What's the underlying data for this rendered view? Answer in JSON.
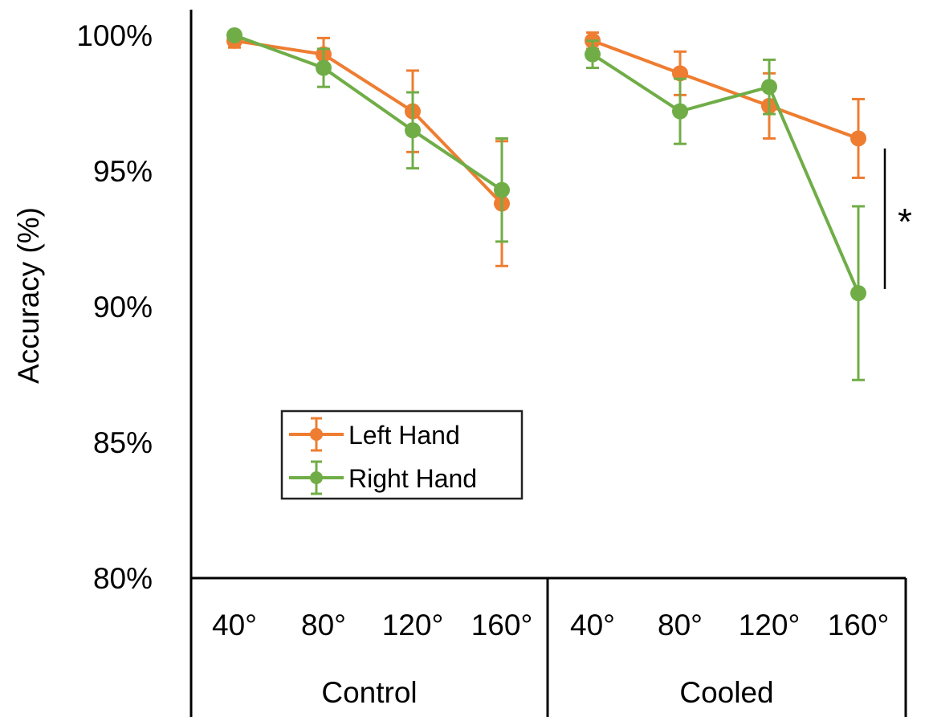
{
  "chart_data": {
    "type": "line",
    "ylabel": "Accuracy (%)",
    "ylim": [
      80,
      100
    ],
    "yticks": [
      100,
      95,
      90,
      85,
      80
    ],
    "ytick_labels": [
      "100%",
      "95%",
      "90%",
      "85%",
      "80%"
    ],
    "groups": [
      {
        "name": "Control",
        "categories": [
          "40°",
          "80°",
          "120°",
          "160°"
        ]
      },
      {
        "name": "Cooled",
        "categories": [
          "40°",
          "80°",
          "120°",
          "160°"
        ]
      }
    ],
    "series": [
      {
        "name": "Left Hand",
        "color": "#EE7D31",
        "values": [
          [
            99.8,
            99.3,
            97.2,
            93.8
          ],
          [
            99.8,
            98.6,
            97.4,
            96.2
          ]
        ],
        "errors": [
          [
            0.25,
            0.6,
            1.5,
            2.3
          ],
          [
            0.3,
            0.8,
            1.2,
            1.45
          ]
        ]
      },
      {
        "name": "Right Hand",
        "color": "#70AD47",
        "values": [
          [
            100.0,
            98.8,
            96.5,
            94.3
          ],
          [
            99.3,
            97.2,
            98.1,
            90.5
          ]
        ],
        "errors": [
          [
            0.0,
            0.7,
            1.4,
            1.9
          ],
          [
            0.5,
            1.2,
            1.0,
            3.2
          ]
        ]
      }
    ],
    "annotation": "*",
    "legend_position": "lower-left"
  }
}
